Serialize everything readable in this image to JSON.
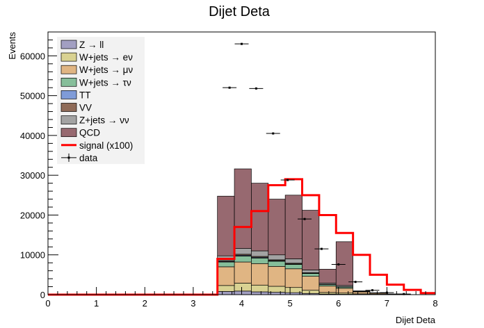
{
  "chart_data": {
    "type": "bar",
    "title": "Dijet Deta",
    "xlabel": "Dijet Deta",
    "ylabel": "Events",
    "xlim": [
      0,
      8
    ],
    "ylim": [
      0,
      66000
    ],
    "x_ticks": [
      "0",
      "1",
      "2",
      "3",
      "4",
      "5",
      "6",
      "7",
      "8"
    ],
    "y_ticks": [
      "0",
      "10000",
      "20000",
      "30000",
      "40000",
      "50000",
      "60000"
    ],
    "grid": false,
    "legend_position": "top-left",
    "bin_edges": [
      0,
      0.35,
      0.7,
      1.05,
      1.4,
      1.75,
      2.1,
      2.45,
      2.8,
      3.15,
      3.5,
      3.85,
      4.2,
      4.55,
      4.9,
      5.25,
      5.6,
      5.95,
      6.3,
      6.65,
      7.0,
      7.35,
      7.7,
      8.0
    ],
    "stack": [
      {
        "name": "Z → ll",
        "color": "#a29fc2",
        "values": [
          0,
          0,
          0,
          0,
          0,
          0,
          0,
          0,
          0,
          0,
          800,
          900,
          700,
          600,
          500,
          300,
          150,
          100,
          50,
          20,
          10,
          0,
          0
        ]
      },
      {
        "name": "W+jets → eν",
        "color": "#d9d292",
        "values": [
          0,
          0,
          0,
          0,
          0,
          0,
          0,
          0,
          0,
          0,
          1500,
          2000,
          1700,
          1500,
          1300,
          800,
          400,
          300,
          150,
          80,
          30,
          0,
          0
        ]
      },
      {
        "name": "W+jets → μν",
        "color": "#e0b583",
        "values": [
          0,
          0,
          0,
          0,
          0,
          0,
          0,
          0,
          0,
          0,
          4700,
          5300,
          5400,
          5000,
          4700,
          3500,
          1600,
          1200,
          500,
          250,
          80,
          0,
          0
        ]
      },
      {
        "name": "W+jets → τν",
        "color": "#86be9a",
        "values": [
          0,
          0,
          0,
          0,
          0,
          0,
          0,
          0,
          0,
          0,
          1200,
          1500,
          1400,
          1300,
          1100,
          700,
          350,
          300,
          100,
          50,
          20,
          0,
          0
        ]
      },
      {
        "name": "TT",
        "color": "#7f9bd8",
        "values": [
          0,
          0,
          0,
          0,
          0,
          0,
          0,
          0,
          0,
          0,
          150,
          200,
          180,
          150,
          120,
          80,
          30,
          30,
          10,
          5,
          0,
          0,
          0
        ]
      },
      {
        "name": "VV",
        "color": "#8f6b58",
        "values": [
          0,
          0,
          0,
          0,
          0,
          0,
          0,
          0,
          0,
          0,
          200,
          250,
          220,
          200,
          180,
          120,
          60,
          40,
          20,
          10,
          0,
          0,
          0
        ]
      },
      {
        "name": "Z+jets → νν",
        "color": "#a3a3a3",
        "values": [
          0,
          0,
          0,
          0,
          0,
          0,
          0,
          0,
          0,
          0,
          1200,
          1450,
          1400,
          1250,
          1100,
          700,
          310,
          330,
          120,
          65,
          30,
          0,
          0
        ]
      },
      {
        "name": "QCD",
        "color": "#976970",
        "values": [
          0,
          0,
          0,
          0,
          0,
          0,
          0,
          0,
          0,
          0,
          15000,
          20000,
          17000,
          14000,
          16000,
          15000,
          3500,
          11000,
          0,
          0,
          0,
          0,
          0
        ]
      }
    ],
    "signal": {
      "name": "signal (x100)",
      "color": "#ff0000",
      "values": [
        0,
        0,
        0,
        0,
        0,
        0,
        0,
        0,
        0,
        0,
        9000,
        17000,
        21000,
        27500,
        29000,
        25000,
        20000,
        15500,
        10000,
        5000,
        2500,
        1200,
        400
      ]
    },
    "data": {
      "name": "data",
      "points": [
        {
          "x": 3.75,
          "y": 52000
        },
        {
          "x": 4.0,
          "y": 63000
        },
        {
          "x": 4.3,
          "y": 51800
        },
        {
          "x": 4.65,
          "y": 40500
        },
        {
          "x": 4.95,
          "y": 28800
        },
        {
          "x": 5.3,
          "y": 19000
        },
        {
          "x": 5.65,
          "y": 11500
        },
        {
          "x": 6.0,
          "y": 7600
        },
        {
          "x": 6.35,
          "y": 3200
        },
        {
          "x": 6.7,
          "y": 1100
        },
        {
          "x": 7.0,
          "y": 500
        },
        {
          "x": 7.35,
          "y": 150
        }
      ]
    }
  }
}
